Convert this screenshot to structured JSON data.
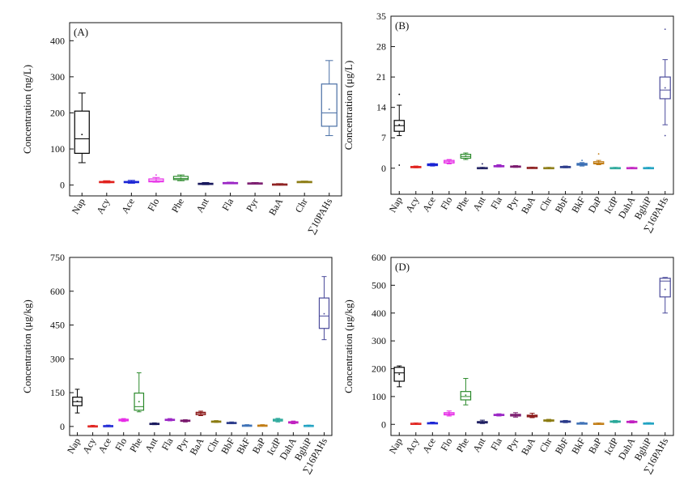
{
  "chart_data": [
    {
      "type": "box",
      "panel_label": "(A)",
      "ylabel": "Concentration (ng/L)",
      "ylim": [
        -30,
        450
      ],
      "yticks": [
        0,
        100,
        200,
        300,
        400
      ],
      "categories": [
        "Nap",
        "Acy",
        "Ace",
        "Flo",
        "Phe",
        "Ant",
        "Fla",
        "Pyr",
        "BaA",
        "Chr",
        "∑10PAHs"
      ],
      "colors": [
        "#000000",
        "#e0201c",
        "#1a24d4",
        "#e62be6",
        "#2c8a2c",
        "#1a1a5e",
        "#9b27c5",
        "#7a1a6e",
        "#8b1a1a",
        "#8a7a10",
        "#4a6fa5"
      ],
      "boxes": [
        {
          "min": 62,
          "q1": 88,
          "median": 128,
          "q3": 205,
          "max": 255,
          "mean": 140,
          "outliers": []
        },
        {
          "min": 6,
          "q1": 7,
          "median": 8,
          "q3": 10,
          "max": 12,
          "mean": 8,
          "outliers": []
        },
        {
          "min": 5,
          "q1": 7,
          "median": 8,
          "q3": 10,
          "max": 13,
          "mean": 8,
          "outliers": []
        },
        {
          "min": 8,
          "q1": 9,
          "median": 12,
          "q3": 17,
          "max": 21,
          "mean": 13,
          "outliers": [
            28
          ]
        },
        {
          "min": 12,
          "q1": 15,
          "median": 18,
          "q3": 24,
          "max": 28,
          "mean": 19,
          "outliers": []
        },
        {
          "min": 1,
          "q1": 2,
          "median": 3,
          "q3": 5,
          "max": 7,
          "mean": 3,
          "outliers": []
        },
        {
          "min": 4,
          "q1": 5,
          "median": 6,
          "q3": 7,
          "max": 8,
          "mean": 6,
          "outliers": []
        },
        {
          "min": 3,
          "q1": 4,
          "median": 5,
          "q3": 6,
          "max": 7,
          "mean": 5,
          "outliers": []
        },
        {
          "min": 0,
          "q1": 1,
          "median": 2,
          "q3": 3,
          "max": 4,
          "mean": 2,
          "outliers": []
        },
        {
          "min": 7,
          "q1": 8,
          "median": 9,
          "q3": 10,
          "max": 11,
          "mean": 9,
          "outliers": []
        },
        {
          "min": 137,
          "q1": 163,
          "median": 200,
          "q3": 280,
          "max": 345,
          "mean": 210,
          "outliers": []
        }
      ]
    },
    {
      "type": "box",
      "panel_label": "(B)",
      "ylabel": "Concentration (μg/L)",
      "ylim": [
        -6,
        35
      ],
      "yticks": [
        0,
        7,
        14,
        21,
        28,
        35
      ],
      "categories": [
        "Nap",
        "Acy",
        "Ace",
        "Flo",
        "Phe",
        "Ant",
        "Fla",
        "Pyr",
        "BaA",
        "Chr",
        "BbF",
        "BkF",
        "DaP",
        "IcdP",
        "DahA",
        "BghiP",
        "∑16PAHs"
      ],
      "colors": [
        "#000000",
        "#e0201c",
        "#1a24d4",
        "#e62be6",
        "#2c8a2c",
        "#1a1a5e",
        "#9b27c5",
        "#7a1a6e",
        "#8b1a1a",
        "#8a7a10",
        "#2a3a8a",
        "#3a6fb5",
        "#c07a10",
        "#2aa89a",
        "#c020c0",
        "#1aa0c0",
        "#4a4a9a"
      ],
      "boxes": [
        {
          "min": 7.5,
          "q1": 8.5,
          "median": 9.8,
          "q3": 11,
          "max": 14.5,
          "mean": 10,
          "outliers": [
            0.7,
            17
          ]
        },
        {
          "min": 0.1,
          "q1": 0.2,
          "median": 0.3,
          "q3": 0.4,
          "max": 0.5,
          "mean": 0.3,
          "outliers": []
        },
        {
          "min": 0.5,
          "q1": 0.6,
          "median": 0.8,
          "q3": 1.0,
          "max": 1.1,
          "mean": 0.8,
          "outliers": []
        },
        {
          "min": 1.0,
          "q1": 1.2,
          "median": 1.5,
          "q3": 1.8,
          "max": 2.0,
          "mean": 1.5,
          "outliers": []
        },
        {
          "min": 2.0,
          "q1": 2.3,
          "median": 2.7,
          "q3": 3.2,
          "max": 3.5,
          "mean": 2.8,
          "outliers": []
        },
        {
          "min": 0,
          "q1": 0.05,
          "median": 0.1,
          "q3": 0.15,
          "max": 0.2,
          "mean": 0.1,
          "outliers": [
            1.0
          ]
        },
        {
          "min": 0.3,
          "q1": 0.4,
          "median": 0.5,
          "q3": 0.6,
          "max": 0.8,
          "mean": 0.5,
          "outliers": []
        },
        {
          "min": 0.2,
          "q1": 0.3,
          "median": 0.4,
          "q3": 0.5,
          "max": 0.6,
          "mean": 0.4,
          "outliers": []
        },
        {
          "min": 0.05,
          "q1": 0.1,
          "median": 0.15,
          "q3": 0.2,
          "max": 0.25,
          "mean": 0.15,
          "outliers": []
        },
        {
          "min": 0.0,
          "q1": 0.05,
          "median": 0.1,
          "q3": 0.15,
          "max": 0.2,
          "mean": 0.1,
          "outliers": []
        },
        {
          "min": 0.1,
          "q1": 0.2,
          "median": 0.3,
          "q3": 0.4,
          "max": 0.5,
          "mean": 0.3,
          "outliers": []
        },
        {
          "min": 0.5,
          "q1": 0.7,
          "median": 0.9,
          "q3": 1.1,
          "max": 1.3,
          "mean": 0.9,
          "outliers": [
            1.8
          ]
        },
        {
          "min": 0.8,
          "q1": 1.0,
          "median": 1.2,
          "q3": 1.5,
          "max": 1.8,
          "mean": 1.2,
          "outliers": [
            3.3
          ]
        },
        {
          "min": 0.0,
          "q1": 0.05,
          "median": 0.1,
          "q3": 0.15,
          "max": 0.2,
          "mean": 0.1,
          "outliers": []
        },
        {
          "min": 0.0,
          "q1": 0.05,
          "median": 0.1,
          "q3": 0.15,
          "max": 0.2,
          "mean": 0.1,
          "outliers": []
        },
        {
          "min": 0.0,
          "q1": 0.05,
          "median": 0.1,
          "q3": 0.15,
          "max": 0.2,
          "mean": 0.1,
          "outliers": []
        },
        {
          "min": 10,
          "q1": 16,
          "median": 18,
          "q3": 21,
          "max": 25,
          "mean": 18.5,
          "outliers": [
            7.5,
            32
          ]
        }
      ]
    },
    {
      "type": "box",
      "panel_label": "",
      "ylabel": "Concentration (μg/kg)",
      "ylim": [
        -40,
        750
      ],
      "yticks": [
        0,
        150,
        300,
        450,
        600,
        750
      ],
      "categories": [
        "Nap",
        "Acy",
        "Ace",
        "Flo",
        "Phe",
        "Ant",
        "Fla",
        "Pyr",
        "BaA",
        "Chr",
        "BbF",
        "BkF",
        "BaP",
        "IcdP",
        "DahA",
        "BghiP",
        "∑16PAHs"
      ],
      "colors": [
        "#000000",
        "#e0201c",
        "#1a24d4",
        "#e62be6",
        "#2c8a2c",
        "#1a1a5e",
        "#9b27c5",
        "#7a1a6e",
        "#8b1a1a",
        "#8a7a10",
        "#2a3a8a",
        "#3a6fb5",
        "#c07a10",
        "#2aa89a",
        "#c020c0",
        "#1aa0c0",
        "#4a4a9a"
      ],
      "boxes": [
        {
          "min": 60,
          "q1": 92,
          "median": 110,
          "q3": 130,
          "max": 165,
          "mean": 112,
          "outliers": []
        },
        {
          "min": 0,
          "q1": 1,
          "median": 2,
          "q3": 3,
          "max": 5,
          "mean": 2,
          "outliers": []
        },
        {
          "min": 1,
          "q1": 2,
          "median": 3,
          "q3": 4,
          "max": 6,
          "mean": 3,
          "outliers": []
        },
        {
          "min": 22,
          "q1": 25,
          "median": 28,
          "q3": 32,
          "max": 35,
          "mean": 28,
          "outliers": []
        },
        {
          "min": 65,
          "q1": 72,
          "median": 88,
          "q3": 148,
          "max": 238,
          "mean": 110,
          "outliers": []
        },
        {
          "min": 8,
          "q1": 10,
          "median": 12,
          "q3": 14,
          "max": 16,
          "mean": 12,
          "outliers": []
        },
        {
          "min": 25,
          "q1": 27,
          "median": 30,
          "q3": 32,
          "max": 35,
          "mean": 30,
          "outliers": []
        },
        {
          "min": 20,
          "q1": 23,
          "median": 25,
          "q3": 28,
          "max": 30,
          "mean": 25,
          "outliers": []
        },
        {
          "min": 48,
          "q1": 52,
          "median": 58,
          "q3": 63,
          "max": 68,
          "mean": 58,
          "outliers": []
        },
        {
          "min": 18,
          "q1": 20,
          "median": 22,
          "q3": 24,
          "max": 26,
          "mean": 22,
          "outliers": []
        },
        {
          "min": 12,
          "q1": 14,
          "median": 16,
          "q3": 18,
          "max": 20,
          "mean": 16,
          "outliers": []
        },
        {
          "min": 2,
          "q1": 3,
          "median": 5,
          "q3": 6,
          "max": 8,
          "mean": 5,
          "outliers": []
        },
        {
          "min": 3,
          "q1": 4,
          "median": 5,
          "q3": 6,
          "max": 8,
          "mean": 5,
          "outliers": []
        },
        {
          "min": 20,
          "q1": 24,
          "median": 28,
          "q3": 32,
          "max": 36,
          "mean": 28,
          "outliers": []
        },
        {
          "min": 12,
          "q1": 15,
          "median": 18,
          "q3": 21,
          "max": 24,
          "mean": 18,
          "outliers": []
        },
        {
          "min": 2,
          "q1": 3,
          "median": 4,
          "q3": 5,
          "max": 6,
          "mean": 4,
          "outliers": []
        },
        {
          "min": 385,
          "q1": 435,
          "median": 490,
          "q3": 570,
          "max": 665,
          "mean": 500,
          "outliers": []
        }
      ]
    },
    {
      "type": "box",
      "panel_label": "(D)",
      "ylabel": "Concentration (μg/kg)",
      "ylim": [
        -40,
        600
      ],
      "yticks": [
        0,
        100,
        200,
        300,
        400,
        500,
        600
      ],
      "categories": [
        "Nap",
        "Acy",
        "Ace",
        "Flo",
        "Phe",
        "Ant",
        "Fla",
        "Pyr",
        "BaA",
        "Chr",
        "BbF",
        "BkF",
        "BaP",
        "IcdP",
        "DahA",
        "BghiP",
        "∑16PAHs"
      ],
      "colors": [
        "#000000",
        "#e0201c",
        "#1a24d4",
        "#e62be6",
        "#2c8a2c",
        "#1a1a5e",
        "#9b27c5",
        "#7a1a6e",
        "#8b1a1a",
        "#8a7a10",
        "#2a3a8a",
        "#3a6fb5",
        "#c07a10",
        "#2aa89a",
        "#c020c0",
        "#1aa0c0",
        "#4a4a9a"
      ],
      "boxes": [
        {
          "min": 135,
          "q1": 155,
          "median": 185,
          "q3": 205,
          "max": 210,
          "mean": 180,
          "outliers": []
        },
        {
          "min": 1,
          "q1": 2,
          "median": 3,
          "q3": 4,
          "max": 5,
          "mean": 3,
          "outliers": []
        },
        {
          "min": 3,
          "q1": 4,
          "median": 5,
          "q3": 6,
          "max": 8,
          "mean": 5,
          "outliers": []
        },
        {
          "min": 30,
          "q1": 34,
          "median": 38,
          "q3": 42,
          "max": 48,
          "mean": 38,
          "outliers": []
        },
        {
          "min": 70,
          "q1": 88,
          "median": 100,
          "q3": 118,
          "max": 165,
          "mean": 105,
          "outliers": []
        },
        {
          "min": 3,
          "q1": 5,
          "median": 7,
          "q3": 10,
          "max": 15,
          "mean": 8,
          "outliers": []
        },
        {
          "min": 30,
          "q1": 32,
          "median": 34,
          "q3": 36,
          "max": 38,
          "mean": 34,
          "outliers": []
        },
        {
          "min": 26,
          "q1": 30,
          "median": 33,
          "q3": 36,
          "max": 42,
          "mean": 33,
          "outliers": []
        },
        {
          "min": 24,
          "q1": 27,
          "median": 30,
          "q3": 33,
          "max": 40,
          "mean": 30,
          "outliers": []
        },
        {
          "min": 10,
          "q1": 12,
          "median": 14,
          "q3": 16,
          "max": 18,
          "mean": 14,
          "outliers": []
        },
        {
          "min": 6,
          "q1": 8,
          "median": 10,
          "q3": 12,
          "max": 14,
          "mean": 10,
          "outliers": []
        },
        {
          "min": 2,
          "q1": 3,
          "median": 4,
          "q3": 5,
          "max": 7,
          "mean": 4,
          "outliers": []
        },
        {
          "min": 1,
          "q1": 2,
          "median": 3,
          "q3": 4,
          "max": 5,
          "mean": 3,
          "outliers": []
        },
        {
          "min": 6,
          "q1": 8,
          "median": 10,
          "q3": 12,
          "max": 14,
          "mean": 10,
          "outliers": []
        },
        {
          "min": 5,
          "q1": 7,
          "median": 9,
          "q3": 11,
          "max": 13,
          "mean": 9,
          "outliers": []
        },
        {
          "min": 2,
          "q1": 3,
          "median": 4,
          "q3": 5,
          "max": 6,
          "mean": 4,
          "outliers": []
        },
        {
          "min": 400,
          "q1": 458,
          "median": 515,
          "q3": 525,
          "max": 528,
          "mean": 485,
          "outliers": []
        }
      ]
    }
  ]
}
